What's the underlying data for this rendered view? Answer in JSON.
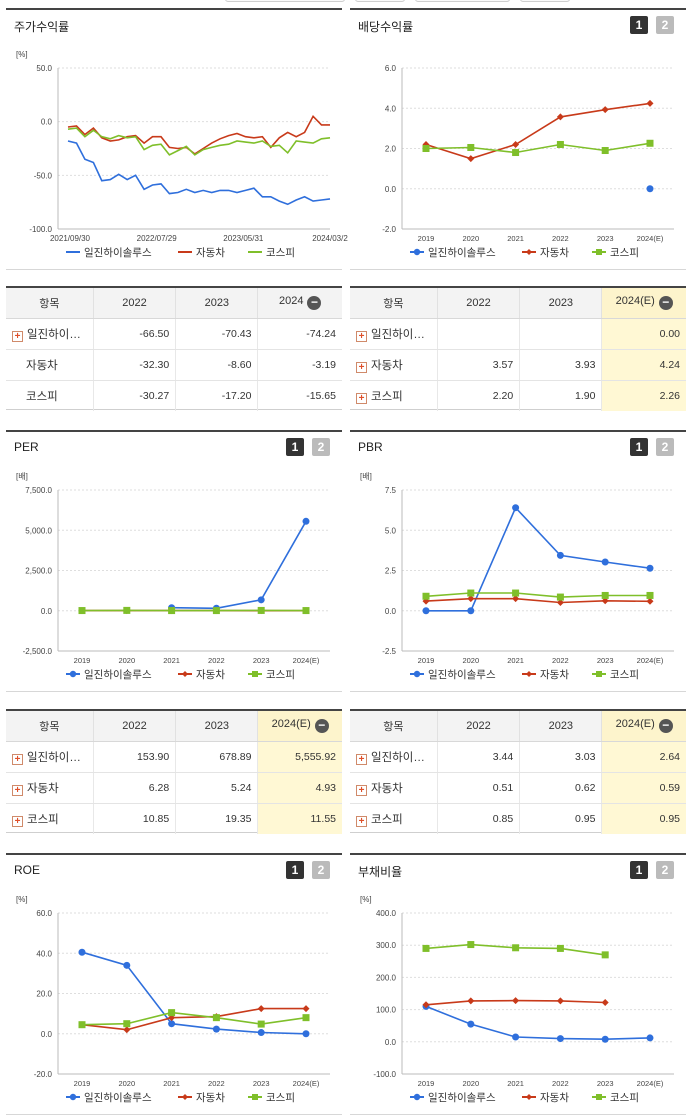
{
  "colors": {
    "company": "#2f6fdc",
    "auto": "#c83a1a",
    "kospi": "#7fbf2a"
  },
  "legend": {
    "company": "일진하이솔루스",
    "auto": "자동차",
    "kospi": "코스피"
  },
  "tab_labels": [
    "1",
    "2"
  ],
  "expand_glyph": "+",
  "collapse_glyph": "−",
  "panels": {
    "stock_return": {
      "title": "주가수익률",
      "chart": {
        "unit": "[%]",
        "y_ticks": [
          "50.0",
          "0.0",
          "-50.0",
          "-100.0"
        ],
        "x_labels": [
          "2021/09/30",
          "2022/07/29",
          "2023/05/31",
          "2024/03/2"
        ]
      },
      "table": {
        "header": [
          "항목",
          "2022",
          "2023",
          "2024"
        ],
        "rows": [
          {
            "name": "일진하이…",
            "expandable": true,
            "values": [
              "-66.50",
              "-70.43",
              "-74.24"
            ]
          },
          {
            "name": "자동차",
            "expandable": false,
            "values": [
              "-32.30",
              "-8.60",
              "-3.19"
            ]
          },
          {
            "name": "코스피",
            "expandable": false,
            "values": [
              "-30.27",
              "-17.20",
              "-15.65"
            ]
          }
        ]
      }
    },
    "dividend": {
      "title": "배당수익률",
      "chart": {
        "unit": "",
        "y_ticks": [
          "6.0",
          "4.0",
          "2.0",
          "0.0",
          "-2.0"
        ],
        "x_labels": [
          "2019",
          "2020",
          "2021",
          "2022",
          "2023",
          "2024(E)"
        ]
      },
      "table": {
        "header": [
          "항목",
          "2022",
          "2023",
          "2024(E)"
        ],
        "rows": [
          {
            "name": "일진하이…",
            "expandable": true,
            "values": [
              "",
              "",
              "0.00"
            ]
          },
          {
            "name": "자동차",
            "expandable": true,
            "values": [
              "3.57",
              "3.93",
              "4.24"
            ]
          },
          {
            "name": "코스피",
            "expandable": true,
            "values": [
              "2.20",
              "1.90",
              "2.26"
            ]
          }
        ]
      }
    },
    "per": {
      "title": "PER",
      "chart": {
        "unit": "[배]",
        "y_ticks": [
          "7,500.0",
          "5,000.0",
          "2,500.0",
          "0.0",
          "-2,500.0"
        ],
        "x_labels": [
          "2019",
          "2020",
          "2021",
          "2022",
          "2023",
          "2024(E)"
        ]
      },
      "table": {
        "header": [
          "항목",
          "2022",
          "2023",
          "2024(E)"
        ],
        "rows": [
          {
            "name": "일진하이…",
            "expandable": true,
            "values": [
              "153.90",
              "678.89",
              "5,555.92"
            ]
          },
          {
            "name": "자동차",
            "expandable": true,
            "values": [
              "6.28",
              "5.24",
              "4.93"
            ]
          },
          {
            "name": "코스피",
            "expandable": true,
            "values": [
              "10.85",
              "19.35",
              "11.55"
            ]
          }
        ]
      }
    },
    "pbr": {
      "title": "PBR",
      "chart": {
        "unit": "[배]",
        "y_ticks": [
          "7.5",
          "5.0",
          "2.5",
          "0.0",
          "-2.5"
        ],
        "x_labels": [
          "2019",
          "2020",
          "2021",
          "2022",
          "2023",
          "2024(E)"
        ]
      },
      "table": {
        "header": [
          "항목",
          "2022",
          "2023",
          "2024(E)"
        ],
        "rows": [
          {
            "name": "일진하이…",
            "expandable": true,
            "values": [
              "3.44",
              "3.03",
              "2.64"
            ]
          },
          {
            "name": "자동차",
            "expandable": true,
            "values": [
              "0.51",
              "0.62",
              "0.59"
            ]
          },
          {
            "name": "코스피",
            "expandable": true,
            "values": [
              "0.85",
              "0.95",
              "0.95"
            ]
          }
        ]
      }
    },
    "roe": {
      "title": "ROE",
      "chart": {
        "unit": "[%]",
        "y_ticks": [
          "60.0",
          "40.0",
          "20.0",
          "0.0",
          "-20.0"
        ],
        "x_labels": [
          "2019",
          "2020",
          "2021",
          "2022",
          "2023",
          "2024(E)"
        ]
      }
    },
    "debt_ratio": {
      "title": "부채비율",
      "chart": {
        "unit": "[%]",
        "y_ticks": [
          "400.0",
          "300.0",
          "200.0",
          "100.0",
          "0.0",
          "-100.0"
        ],
        "x_labels": [
          "2019",
          "2020",
          "2021",
          "2022",
          "2023",
          "2024(E)"
        ]
      }
    }
  },
  "chart_data": [
    {
      "id": "stock_return",
      "type": "line",
      "ylim": [
        -100,
        50
      ],
      "ylabel": "[%]",
      "x_ticks": [
        "2021/09/30",
        "2022/07/29",
        "2023/05/31",
        "2024/03/2"
      ],
      "series": [
        {
          "name": "일진하이솔루스",
          "key": "company",
          "values": [
            -18,
            -20,
            -35,
            -38,
            -55,
            -54,
            -49,
            -54,
            -50,
            -63,
            -59,
            -58,
            -67,
            -66,
            -63,
            -66,
            -64,
            -66,
            -64,
            -64,
            -66,
            -64,
            -62,
            -70,
            -70,
            -74,
            -77,
            -73,
            -70,
            -74,
            -73,
            -72
          ]
        },
        {
          "name": "자동차",
          "key": "auto",
          "values": [
            -5,
            -4,
            -12,
            -6,
            -15,
            -18,
            -17,
            -14,
            -13,
            -20,
            -14,
            -14,
            -24,
            -25,
            -24,
            -30,
            -25,
            -20,
            -16,
            -13,
            -11,
            -14,
            -15,
            -14,
            -24,
            -15,
            -10,
            -14,
            -10,
            5,
            -3,
            -3
          ]
        },
        {
          "name": "코스피",
          "key": "kospi",
          "values": [
            -7,
            -6,
            -14,
            -8,
            -14,
            -16,
            -13,
            -15,
            -14,
            -26,
            -22,
            -21,
            -31,
            -27,
            -23,
            -31,
            -26,
            -24,
            -22,
            -21,
            -18,
            -19,
            -20,
            -18,
            -23,
            -22,
            -29,
            -18,
            -19,
            -20,
            -16,
            -15
          ]
        }
      ]
    },
    {
      "id": "dividend",
      "type": "line",
      "ylim": [
        -2,
        6
      ],
      "categories": [
        "2019",
        "2020",
        "2021",
        "2022",
        "2023",
        "2024(E)"
      ],
      "series": [
        {
          "name": "일진하이솔루스",
          "key": "company",
          "values": [
            null,
            null,
            null,
            null,
            null,
            0.0
          ]
        },
        {
          "name": "자동차",
          "key": "auto",
          "values": [
            2.2,
            1.5,
            2.2,
            3.57,
            3.93,
            4.24
          ]
        },
        {
          "name": "코스피",
          "key": "kospi",
          "values": [
            2.0,
            2.05,
            1.8,
            2.2,
            1.9,
            2.26
          ]
        }
      ]
    },
    {
      "id": "per",
      "type": "line",
      "ylim": [
        -2500,
        7500
      ],
      "ylabel": "[배]",
      "categories": [
        "2019",
        "2020",
        "2021",
        "2022",
        "2023",
        "2024(E)"
      ],
      "series": [
        {
          "name": "일진하이솔루스",
          "key": "company",
          "values": [
            null,
            null,
            190,
            153.9,
            678.89,
            5555.92
          ]
        },
        {
          "name": "자동차",
          "key": "auto",
          "values": [
            8,
            10,
            7,
            6.28,
            5.24,
            4.93
          ]
        },
        {
          "name": "코스피",
          "key": "kospi",
          "values": [
            12,
            22,
            11,
            10.85,
            19.35,
            11.55
          ]
        }
      ]
    },
    {
      "id": "pbr",
      "type": "line",
      "ylim": [
        -2.5,
        7.5
      ],
      "ylabel": "[배]",
      "categories": [
        "2019",
        "2020",
        "2021",
        "2022",
        "2023",
        "2024(E)"
      ],
      "series": [
        {
          "name": "일진하이솔루스",
          "key": "company",
          "values": [
            0,
            0,
            6.4,
            3.44,
            3.03,
            2.64
          ]
        },
        {
          "name": "자동차",
          "key": "auto",
          "values": [
            0.6,
            0.75,
            0.75,
            0.51,
            0.62,
            0.59
          ]
        },
        {
          "name": "코스피",
          "key": "kospi",
          "values": [
            0.9,
            1.1,
            1.1,
            0.85,
            0.95,
            0.95
          ]
        }
      ]
    },
    {
      "id": "roe",
      "type": "line",
      "ylim": [
        -20,
        60
      ],
      "ylabel": "[%]",
      "categories": [
        "2019",
        "2020",
        "2021",
        "2022",
        "2023",
        "2024(E)"
      ],
      "series": [
        {
          "name": "일진하이솔루스",
          "key": "company",
          "values": [
            40.5,
            34,
            5,
            2.3,
            0.6,
            0
          ]
        },
        {
          "name": "자동차",
          "key": "auto",
          "values": [
            4.5,
            2,
            8,
            8.5,
            12.5,
            12.5
          ]
        },
        {
          "name": "코스피",
          "key": "kospi",
          "values": [
            4.5,
            5,
            10.5,
            8,
            4.8,
            8
          ]
        }
      ]
    },
    {
      "id": "debt_ratio",
      "type": "line",
      "ylim": [
        -100,
        400
      ],
      "ylabel": "[%]",
      "categories": [
        "2019",
        "2020",
        "2021",
        "2022",
        "2023",
        "2024(E)"
      ],
      "series": [
        {
          "name": "일진하이솔루스",
          "key": "company",
          "values": [
            110,
            55,
            15,
            10,
            8,
            12
          ]
        },
        {
          "name": "자동차",
          "key": "auto",
          "values": [
            115,
            127,
            128,
            127,
            122,
            null
          ]
        },
        {
          "name": "코스피",
          "key": "kospi",
          "values": [
            290,
            302,
            292,
            290,
            270,
            null
          ]
        }
      ]
    }
  ]
}
